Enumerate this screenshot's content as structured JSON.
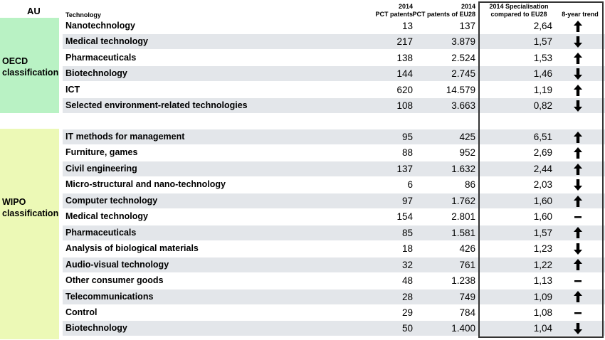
{
  "headers": {
    "au": "AU",
    "technology": "Technology",
    "pct_line1": "2014",
    "pct_line2": "PCT patents",
    "eu_line1": "2014",
    "eu_line2": "PCT patents of EU28",
    "spec_line1": "2014 Specialisation",
    "spec_line2": "compared to EU28",
    "trend": "8-year trend"
  },
  "groups": {
    "oecd": {
      "line1": "OECD",
      "line2": "classification"
    },
    "wipo": {
      "line1": "WIPO",
      "line2": "classification"
    }
  },
  "oecd_rows": [
    {
      "name": "Nanotechnology",
      "pct": "13",
      "eu": "137",
      "spec": "2,64",
      "trend": "up",
      "trend_icon": "arrow-up-icon"
    },
    {
      "name": "Medical technology",
      "pct": "217",
      "eu": "3.879",
      "spec": "1,57",
      "trend": "down",
      "trend_icon": "arrow-down-icon"
    },
    {
      "name": "Pharmaceuticals",
      "pct": "138",
      "eu": "2.524",
      "spec": "1,53",
      "trend": "up",
      "trend_icon": "arrow-up-icon"
    },
    {
      "name": "Biotechnology",
      "pct": "144",
      "eu": "2.745",
      "spec": "1,46",
      "trend": "down",
      "trend_icon": "arrow-down-icon"
    },
    {
      "name": "ICT",
      "pct": "620",
      "eu": "14.579",
      "spec": "1,19",
      "trend": "up",
      "trend_icon": "arrow-up-icon"
    },
    {
      "name": "Selected environment-related technologies",
      "pct": "108",
      "eu": "3.663",
      "spec": "0,82",
      "trend": "down",
      "trend_icon": "arrow-down-icon"
    }
  ],
  "wipo_rows": [
    {
      "name": "IT methods for management",
      "pct": "95",
      "eu": "425",
      "spec": "6,51",
      "trend": "up",
      "trend_icon": "arrow-up-icon"
    },
    {
      "name": "Furniture, games",
      "pct": "88",
      "eu": "952",
      "spec": "2,69",
      "trend": "up",
      "trend_icon": "arrow-up-icon"
    },
    {
      "name": "Civil engineering",
      "pct": "137",
      "eu": "1.632",
      "spec": "2,44",
      "trend": "up",
      "trend_icon": "arrow-up-icon"
    },
    {
      "name": "Micro-structural and nano-technology",
      "pct": "6",
      "eu": "86",
      "spec": "2,03",
      "trend": "down",
      "trend_icon": "arrow-down-icon"
    },
    {
      "name": "Computer technology",
      "pct": "97",
      "eu": "1.762",
      "spec": "1,60",
      "trend": "up",
      "trend_icon": "arrow-up-icon"
    },
    {
      "name": "Medical technology",
      "pct": "154",
      "eu": "2.801",
      "spec": "1,60",
      "trend": "flat",
      "trend_icon": "dash-icon"
    },
    {
      "name": "Pharmaceuticals",
      "pct": "85",
      "eu": "1.581",
      "spec": "1,57",
      "trend": "up",
      "trend_icon": "arrow-up-icon"
    },
    {
      "name": "Analysis of biological materials",
      "pct": "18",
      "eu": "426",
      "spec": "1,23",
      "trend": "down",
      "trend_icon": "arrow-down-icon"
    },
    {
      "name": "Audio-visual technology",
      "pct": "32",
      "eu": "761",
      "spec": "1,22",
      "trend": "up",
      "trend_icon": "arrow-up-icon"
    },
    {
      "name": "Other consumer goods",
      "pct": "48",
      "eu": "1.238",
      "spec": "1,13",
      "trend": "flat",
      "trend_icon": "dash-icon"
    },
    {
      "name": "Telecommunications",
      "pct": "28",
      "eu": "749",
      "spec": "1,09",
      "trend": "up",
      "trend_icon": "arrow-up-icon"
    },
    {
      "name": "Control",
      "pct": "29",
      "eu": "784",
      "spec": "1,08",
      "trend": "flat",
      "trend_icon": "dash-icon"
    },
    {
      "name": "Biotechnology",
      "pct": "50",
      "eu": "1.400",
      "spec": "1,04",
      "trend": "down",
      "trend_icon": "arrow-down-icon"
    }
  ],
  "colors": {
    "oecd_bg": "#b9f2c4",
    "wipo_bg": "#ecf9b6",
    "row_shade": "#e3e6ea",
    "box_border": "#333333"
  }
}
